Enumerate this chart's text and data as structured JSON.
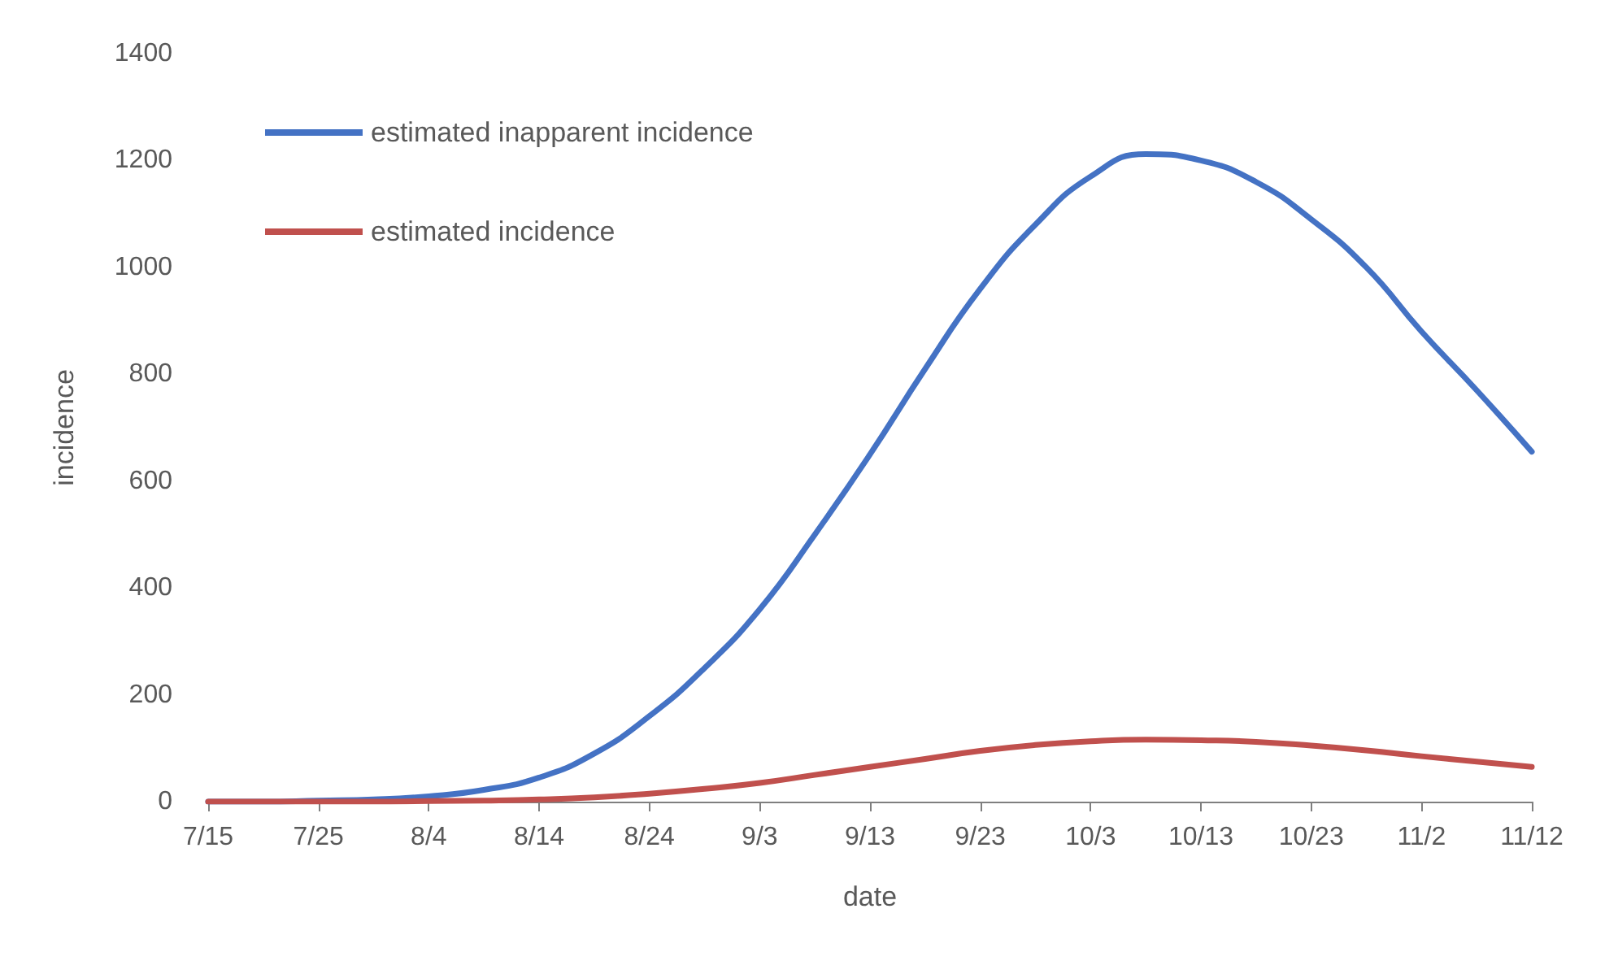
{
  "chart_data": {
    "type": "line",
    "xlabel": "date",
    "ylabel": "incidence",
    "x": [
      "--07-15",
      "--07-20",
      "--07-25",
      "--07-30",
      "--08-04",
      "--08-09",
      "--08-14",
      "--08-19",
      "--08-24",
      "--08-29",
      "--09-03",
      "--09-08",
      "--09-13",
      "--09-18",
      "--09-23",
      "--09-28",
      "--10-03",
      "--10-08",
      "--10-13",
      "--10-18",
      "--10-23",
      "--10-28",
      "--11-02",
      "--11-07",
      "--11-12"
    ],
    "series": [
      {
        "name": "estimated inapparent incidence",
        "color": "#4472c4",
        "values": [
          0,
          0,
          2,
          4,
          10,
          22,
          45,
          90,
          160,
          250,
          360,
          500,
          650,
          810,
          960,
          1080,
          1170,
          1212,
          1200,
          1160,
          1090,
          1000,
          880,
          770,
          655
        ]
      },
      {
        "name": "estimated incidence",
        "color": "#c0504d",
        "values": [
          0,
          0,
          0,
          0,
          1,
          2,
          4,
          8,
          15,
          24,
          35,
          50,
          65,
          80,
          95,
          106,
          113,
          116,
          115,
          112,
          105,
          96,
          85,
          75,
          65
        ]
      }
    ],
    "xlim": [
      "--07-15",
      "--11-12"
    ],
    "xticks": [
      {
        "value": "--07-15",
        "label": "7/15"
      },
      {
        "value": "--07-25",
        "label": "7/25"
      },
      {
        "value": "--08-04",
        "label": "8/4"
      },
      {
        "value": "--08-14",
        "label": "8/14"
      },
      {
        "value": "--08-24",
        "label": "8/24"
      },
      {
        "value": "--09-03",
        "label": "9/3"
      },
      {
        "value": "--09-13",
        "label": "9/13"
      },
      {
        "value": "--09-23",
        "label": "9/23"
      },
      {
        "value": "--10-03",
        "label": "10/3"
      },
      {
        "value": "--10-13",
        "label": "10/13"
      },
      {
        "value": "--10-23",
        "label": "10/23"
      },
      {
        "value": "--11-02",
        "label": "11/2"
      },
      {
        "value": "--11-12",
        "label": "11/12"
      }
    ],
    "ylim": [
      0,
      1400
    ],
    "yticks": [
      0,
      200,
      400,
      600,
      800,
      1000,
      1200,
      1400
    ],
    "grid": false,
    "legend": "top left",
    "marker": "none",
    "line_style": "solid"
  }
}
